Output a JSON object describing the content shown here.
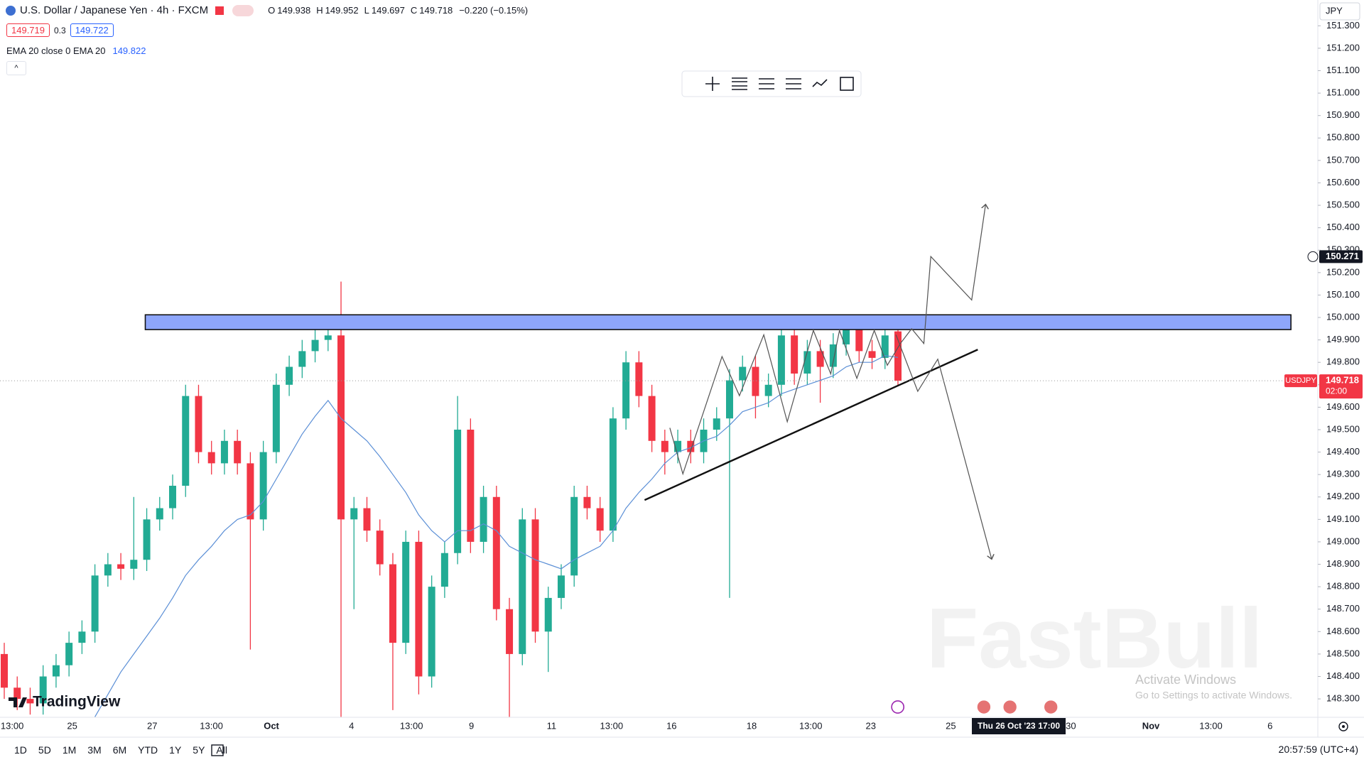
{
  "header": {
    "symbol": "U.S. Dollar / Japanese Yen · 4h · FXCM",
    "ohlc_letters": [
      "O",
      "H",
      "L",
      "C"
    ],
    "change": "−0.220 (−0.15%)",
    "bid": 149.719,
    "spread": 0.3,
    "ask": 149.722
  },
  "chart_data": {
    "type": "candlestick",
    "symbol": "USDJPY",
    "currency": "JPY",
    "up_color": "#22ab94",
    "down_color": "#f23645",
    "open": [
      148.5,
      148.35,
      148.3,
      148.28,
      148.4,
      148.45,
      148.55,
      148.6,
      148.85,
      148.9,
      148.88,
      148.92,
      149.1,
      149.15,
      149.25,
      149.65,
      149.4,
      149.35,
      149.45,
      149.35,
      149.1,
      149.4,
      149.7,
      149.78,
      149.85,
      149.9,
      149.92,
      149.1,
      149.15,
      149.05,
      148.9,
      148.55,
      149.0,
      148.4,
      148.8,
      148.95,
      149.5,
      149.0,
      149.2,
      148.7,
      148.5,
      149.1,
      148.6,
      148.75,
      148.85,
      149.2,
      149.15,
      149.05,
      149.55,
      149.8,
      149.65,
      149.45,
      149.4,
      149.45,
      149.4,
      149.5,
      149.55,
      149.72,
      149.78,
      149.65,
      149.7,
      149.92,
      149.75,
      149.85,
      149.78,
      149.88,
      149.97,
      149.85,
      149.82,
      149.938
    ],
    "high": [
      148.55,
      148.4,
      148.35,
      148.45,
      148.5,
      148.6,
      148.65,
      148.9,
      148.95,
      148.95,
      149.2,
      149.15,
      149.2,
      149.3,
      149.7,
      149.7,
      149.45,
      149.5,
      149.5,
      149.4,
      149.45,
      149.75,
      149.83,
      149.9,
      149.95,
      149.98,
      150.16,
      149.2,
      149.2,
      149.1,
      148.95,
      149.05,
      149.05,
      148.85,
      149.0,
      149.65,
      149.55,
      149.25,
      149.25,
      148.75,
      149.15,
      149.15,
      148.8,
      148.9,
      149.25,
      149.25,
      149.2,
      149.6,
      149.85,
      149.85,
      149.7,
      149.5,
      149.5,
      149.5,
      149.55,
      149.6,
      149.77,
      149.83,
      149.83,
      149.75,
      149.95,
      149.95,
      149.9,
      149.9,
      149.93,
      150.0,
      150.0,
      149.9,
      149.96,
      149.952
    ],
    "low": [
      148.3,
      148.25,
      148.23,
      148.23,
      148.35,
      148.4,
      148.5,
      148.55,
      148.8,
      148.83,
      148.83,
      148.87,
      149.05,
      149.1,
      149.2,
      149.35,
      149.3,
      149.3,
      149.3,
      148.52,
      149.05,
      149.35,
      149.65,
      149.73,
      149.8,
      149.85,
      148.22,
      148.7,
      149.0,
      148.85,
      148.25,
      148.5,
      148.32,
      148.35,
      148.75,
      148.9,
      148.95,
      148.95,
      148.65,
      148.22,
      148.45,
      148.55,
      148.42,
      148.7,
      148.8,
      149.1,
      149.0,
      149.0,
      149.5,
      149.6,
      149.4,
      149.3,
      149.35,
      149.35,
      149.35,
      149.45,
      148.75,
      149.67,
      149.55,
      149.6,
      149.65,
      149.7,
      149.7,
      149.62,
      149.73,
      149.83,
      149.8,
      149.77,
      149.77,
      149.697
    ],
    "close": [
      148.35,
      148.3,
      148.28,
      148.4,
      148.45,
      148.55,
      148.6,
      148.85,
      148.9,
      148.88,
      148.92,
      149.1,
      149.15,
      149.25,
      149.65,
      149.4,
      149.35,
      149.45,
      149.35,
      149.1,
      149.4,
      149.7,
      149.78,
      149.85,
      149.9,
      149.92,
      149.1,
      149.15,
      149.05,
      148.9,
      148.55,
      149.0,
      148.4,
      148.8,
      148.95,
      149.5,
      149.0,
      149.2,
      148.7,
      148.5,
      149.1,
      148.6,
      148.75,
      148.85,
      149.2,
      149.15,
      149.05,
      149.55,
      149.8,
      149.65,
      149.45,
      149.4,
      149.45,
      149.4,
      149.5,
      149.55,
      149.72,
      149.78,
      149.65,
      149.7,
      149.92,
      149.75,
      149.85,
      149.78,
      149.88,
      149.97,
      149.85,
      149.82,
      149.92,
      149.718
    ],
    "ema": {
      "name": "EMA 20 close 0 EMA 20",
      "color": "#5b8fd6",
      "values": [
        null,
        null,
        null,
        null,
        null,
        null,
        null,
        148.22,
        148.32,
        148.42,
        148.5,
        148.58,
        148.66,
        148.75,
        148.85,
        148.92,
        148.98,
        149.05,
        149.1,
        149.12,
        149.18,
        149.28,
        149.38,
        149.48,
        149.56,
        149.63,
        149.55,
        149.5,
        149.45,
        149.38,
        149.3,
        149.22,
        149.12,
        149.05,
        149.0,
        149.05,
        149.05,
        149.08,
        149.05,
        148.98,
        148.95,
        148.92,
        148.9,
        148.88,
        148.92,
        148.95,
        148.98,
        149.05,
        149.15,
        149.22,
        149.28,
        149.35,
        149.4,
        149.42,
        149.45,
        149.47,
        149.52,
        149.58,
        149.6,
        149.62,
        149.66,
        149.68,
        149.7,
        149.72,
        149.74,
        149.78,
        149.8,
        149.8,
        149.83,
        149.822
      ]
    },
    "ylim": [
      148.218,
      151.415
    ],
    "yticks": [
      {
        "value": 148.3,
        "label": "148.300"
      },
      {
        "value": 148.4,
        "label": "148.400"
      },
      {
        "value": 148.5,
        "label": "148.500"
      },
      {
        "value": 148.6,
        "label": "148.600"
      },
      {
        "value": 148.7,
        "label": "148.700"
      },
      {
        "value": 148.8,
        "label": "148.800"
      },
      {
        "value": 148.9,
        "label": "148.900"
      },
      {
        "value": 149.0,
        "label": "149.000"
      },
      {
        "value": 149.1,
        "label": "149.100"
      },
      {
        "value": 149.2,
        "label": "149.200"
      },
      {
        "value": 149.3,
        "label": "149.300"
      },
      {
        "value": 149.4,
        "label": "149.400"
      },
      {
        "value": 149.5,
        "label": "149.500"
      },
      {
        "value": 149.6,
        "label": "149.600"
      },
      {
        "value": 149.7,
        "label": "149.700"
      },
      {
        "value": 149.8,
        "label": "149.800"
      },
      {
        "value": 149.9,
        "label": "149.900"
      },
      {
        "value": 150.0,
        "label": "150.000"
      },
      {
        "value": 150.1,
        "label": "150.100"
      },
      {
        "value": 150.2,
        "label": "150.200"
      },
      {
        "value": 150.3,
        "label": "150.300"
      },
      {
        "value": 150.4,
        "label": "150.400"
      },
      {
        "value": 150.5,
        "label": "150.500"
      },
      {
        "value": 150.6,
        "label": "150.600"
      },
      {
        "value": 150.7,
        "label": "150.700"
      },
      {
        "value": 150.8,
        "label": "150.800"
      },
      {
        "value": 150.9,
        "label": "150.900"
      },
      {
        "value": 151.0,
        "label": "151.000"
      },
      {
        "value": 151.1,
        "label": "151.100"
      },
      {
        "value": 151.2,
        "label": "151.200"
      },
      {
        "value": 151.3,
        "label": "151.300"
      }
    ],
    "x_labels": [
      "13:00",
      "25",
      "27",
      "13:00",
      "Oct",
      "4",
      "13:00",
      "9",
      "11",
      "13:00",
      "16",
      "18",
      "13:00",
      "23",
      "25",
      "30",
      "Nov",
      "13:00",
      "6"
    ],
    "crosshair_price": 150.271,
    "countdown": "02:00",
    "crosshair_time": [
      "Thu 26 Oct '23",
      "17:00"
    ]
  },
  "toolbar": {
    "ranges": [
      "1D",
      "5D",
      "1M",
      "3M",
      "6M",
      "YTD",
      "1Y",
      "5Y",
      "All"
    ],
    "clock": "20:57:59 (UTC+4)"
  },
  "branding": {
    "logo": "TradingView",
    "watermark": "FastBull"
  },
  "os_notice": {
    "title": "Activate Windows",
    "text": "Go to Settings to activate Windows."
  }
}
